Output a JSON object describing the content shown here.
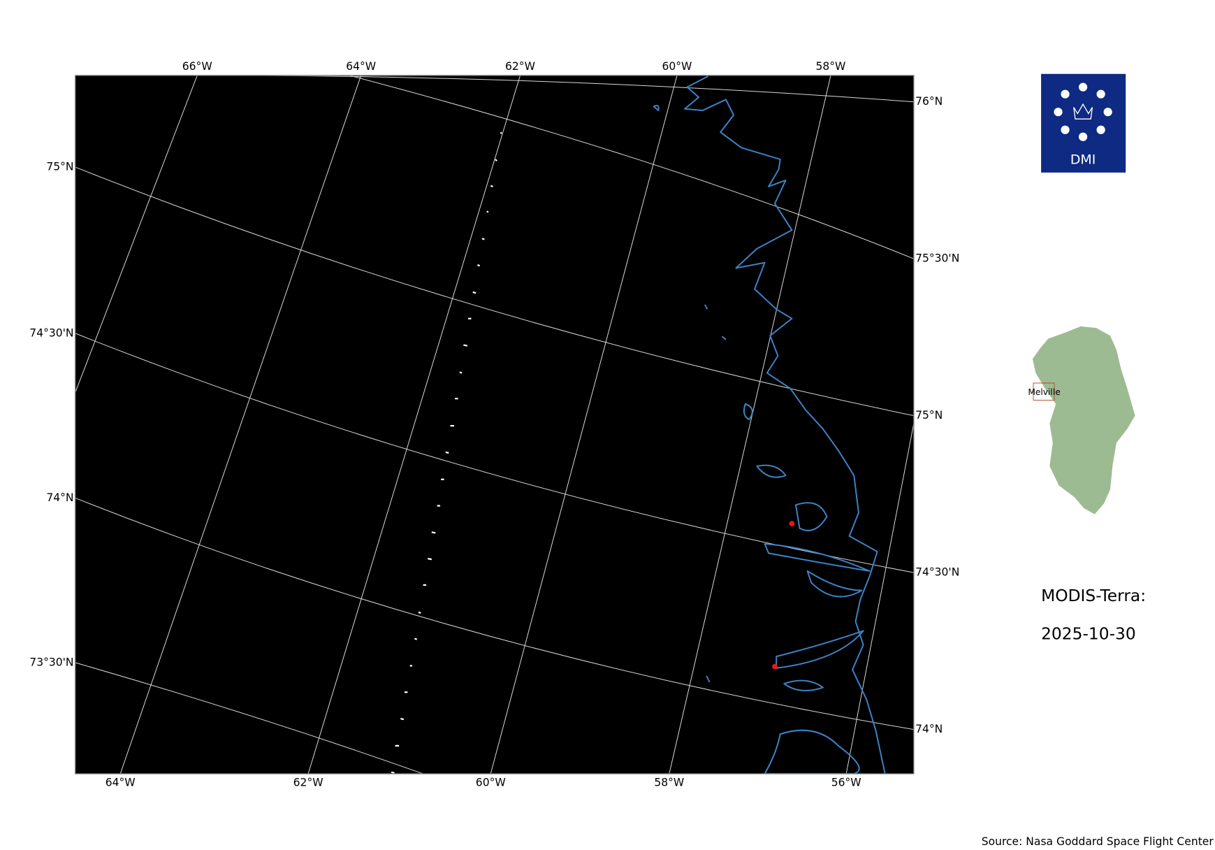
{
  "map": {
    "top_ticks": [
      "66°W",
      "64°W",
      "62°W",
      "60°W",
      "58°W"
    ],
    "bottom_ticks": [
      "64°W",
      "62°W",
      "60°W",
      "58°W",
      "56°W"
    ],
    "left_ticks": [
      "75°N",
      "74°30'N",
      "74°N",
      "73°30'N"
    ],
    "right_ticks": [
      "76°N",
      "75°30'N",
      "75°N",
      "74°30'N",
      "74°N"
    ]
  },
  "logo": "DMI",
  "inset_label": "Melville",
  "product": "MODIS-Terra:",
  "date": "2025-10-30",
  "source": "Source: Nasa Goddard Space Flight Center"
}
